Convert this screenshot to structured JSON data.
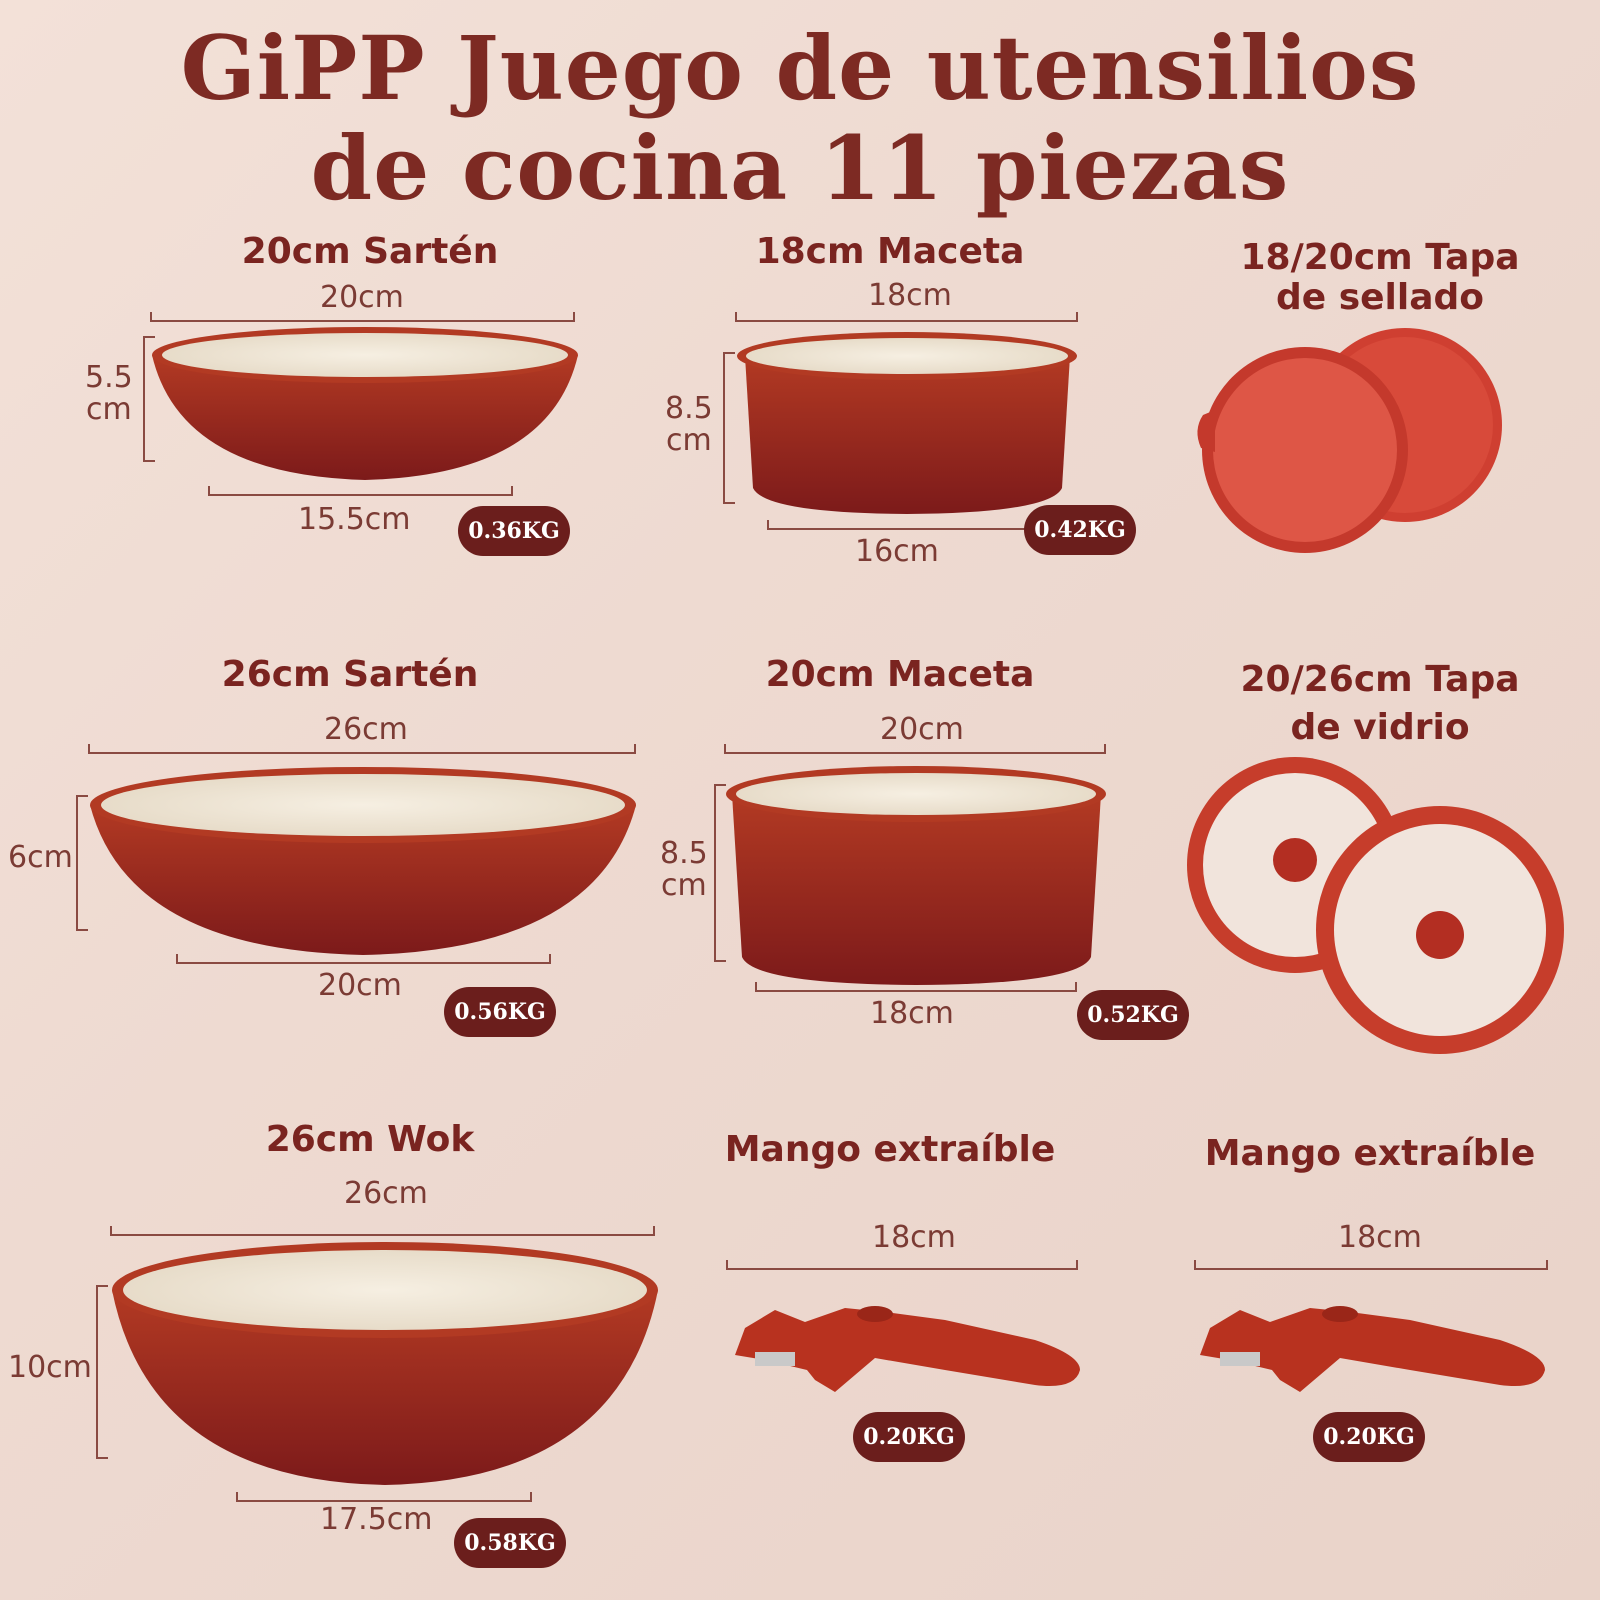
{
  "title": {
    "line1": "GiPP Juego de utensilios",
    "line2": "de cocina 11 piezas"
  },
  "items": [
    {
      "name": "20cm Sartén",
      "top_dim": "20cm",
      "side_dim_1": "5.5",
      "side_dim_2": "cm",
      "bottom_dim": "15.5cm",
      "weight": "0.36KG"
    },
    {
      "name": "18cm Maceta",
      "top_dim": "18cm",
      "side_dim_1": "8.5",
      "side_dim_2": "cm",
      "bottom_dim": "16cm",
      "weight": "0.42KG"
    },
    {
      "name_1": "18/20cm Tapa",
      "name_2": "de sellado"
    },
    {
      "name": "26cm Sartén",
      "top_dim": "26cm",
      "side_dim": "6cm",
      "bottom_dim": "20cm",
      "weight": "0.56KG"
    },
    {
      "name": "20cm Maceta",
      "top_dim": "20cm",
      "side_dim_1": "8.5",
      "side_dim_2": "cm",
      "bottom_dim": "18cm",
      "weight": "0.52KG"
    },
    {
      "name_1": "20/26cm Tapa",
      "name_2": "de vidrio"
    },
    {
      "name": "26cm Wok",
      "top_dim": "26cm",
      "side_dim": "10cm",
      "bottom_dim": "17.5cm",
      "weight": "0.58KG"
    },
    {
      "name": "Mango extraíble",
      "top_dim": "18cm",
      "weight": "0.20KG"
    },
    {
      "name": "Mango extraíble",
      "top_dim": "18cm",
      "weight": "0.20KG"
    }
  ],
  "colors": {
    "title": "#7d2a23",
    "badge": "#6b1e1c",
    "pan": "#a8321f",
    "interior": "#efe6d6",
    "lid": "#c8422f"
  }
}
